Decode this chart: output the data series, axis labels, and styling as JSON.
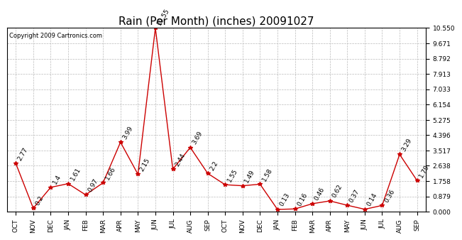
{
  "title": "Rain (Per Month) (inches) 20091027",
  "copyright": "Copyright 2009 Cartronics.com",
  "months": [
    "OCT",
    "NOV",
    "DEC",
    "JAN",
    "FEB",
    "MAR",
    "APR",
    "MAY",
    "JUN",
    "JUL",
    "AUG",
    "SEP",
    "OCT",
    "NOV",
    "DEC",
    "JAN",
    "FEB",
    "MAR",
    "APR",
    "MAY",
    "JUN",
    "JUL",
    "AUG",
    "SEP"
  ],
  "values": [
    2.77,
    0.2,
    1.4,
    1.61,
    0.97,
    1.66,
    3.99,
    2.15,
    10.55,
    2.44,
    3.69,
    2.2,
    1.55,
    1.49,
    1.58,
    0.13,
    0.16,
    0.46,
    0.62,
    0.37,
    0.14,
    0.36,
    3.29,
    1.79
  ],
  "line_color": "#cc0000",
  "marker_color": "#cc0000",
  "background_color": "#ffffff",
  "grid_color": "#bbbbbb",
  "yticks": [
    0.0,
    0.879,
    1.758,
    2.638,
    3.517,
    4.396,
    5.275,
    6.154,
    7.033,
    7.913,
    8.792,
    9.671,
    10.55
  ],
  "ymax": 10.55,
  "title_fontsize": 11,
  "label_fontsize": 6.5,
  "tick_fontsize": 6.5,
  "copyright_fontsize": 6,
  "annotation_rotation": 60
}
